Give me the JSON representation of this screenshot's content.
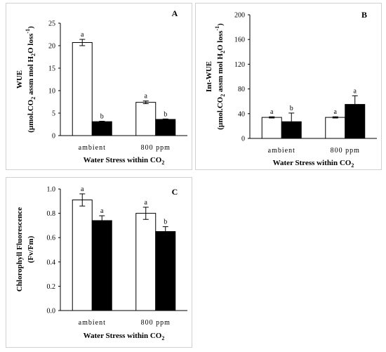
{
  "colors": {
    "series_open": "#ffffff",
    "series_filled": "#000000",
    "axis": "#000000",
    "frame": "#d0d0d0"
  },
  "chart_data": [
    {
      "id": "A",
      "type": "bar",
      "panel_label": "A",
      "categories": [
        "ambient",
        "800 ppm"
      ],
      "series": [
        {
          "color": "#ffffff",
          "values": [
            20.7,
            7.4
          ],
          "errors": [
            0.7,
            0.3
          ],
          "letters": [
            "a",
            "a"
          ]
        },
        {
          "color": "#000000",
          "values": [
            3.1,
            3.6
          ],
          "errors": [
            0.1,
            0.1
          ],
          "letters": [
            "b",
            "b"
          ]
        }
      ],
      "xlabel": "Water Stress within CO",
      "xlabel_sub": "2",
      "ylabel_line1": "WUE",
      "ylabel_line2": {
        "a": "(µmol.CO",
        "b": "2",
        "c": " assm mol H",
        "d": "2",
        "e": "O loss",
        "f": "-1",
        "g": ")"
      },
      "ylim": [
        0,
        25
      ],
      "yticks": [
        0,
        5,
        10,
        15,
        20,
        25
      ],
      "grid": false
    },
    {
      "id": "B",
      "type": "bar",
      "panel_label": "B",
      "categories": [
        "ambient",
        "800 ppm"
      ],
      "series": [
        {
          "color": "#ffffff",
          "values": [
            34,
            34
          ],
          "errors": [
            1,
            1
          ],
          "letters": [
            "a",
            "a"
          ]
        },
        {
          "color": "#000000",
          "values": [
            27,
            55
          ],
          "errors": [
            14,
            14
          ],
          "letters": [
            "b",
            "a"
          ]
        }
      ],
      "xlabel": "Water Stress within CO",
      "xlabel_sub": "2",
      "ylabel_line1": "Int-WUE",
      "ylabel_line2": {
        "a": "(µmol.CO",
        "b": "2",
        "c": " assm mol H",
        "d": "2",
        "e": "O loss",
        "f": "-1",
        "g": ")"
      },
      "ylim": [
        0,
        200
      ],
      "yticks": [
        0,
        40,
        80,
        120,
        160,
        200
      ],
      "grid": false
    },
    {
      "id": "C",
      "type": "bar",
      "panel_label": "C",
      "categories": [
        "ambient",
        "800 ppm"
      ],
      "series": [
        {
          "color": "#ffffff",
          "values": [
            0.91,
            0.8
          ],
          "errors": [
            0.05,
            0.05
          ],
          "letters": [
            "a",
            "a"
          ]
        },
        {
          "color": "#000000",
          "values": [
            0.74,
            0.65
          ],
          "errors": [
            0.04,
            0.04
          ],
          "letters": [
            "a",
            "b"
          ]
        }
      ],
      "xlabel": "Water Stress within CO",
      "xlabel_sub": "2",
      "ylabel_line1": "Chlorophyll Fluorescence",
      "ylabel_line2": {
        "a": "(Fv/Fm)",
        "b": "",
        "c": "",
        "d": "",
        "e": "",
        "f": "",
        "g": ""
      },
      "ylim": [
        0,
        1.0
      ],
      "yticks": [
        "0.0",
        "0.2",
        "0.4",
        "0.6",
        "0.8",
        "1.0"
      ],
      "grid": false
    }
  ]
}
